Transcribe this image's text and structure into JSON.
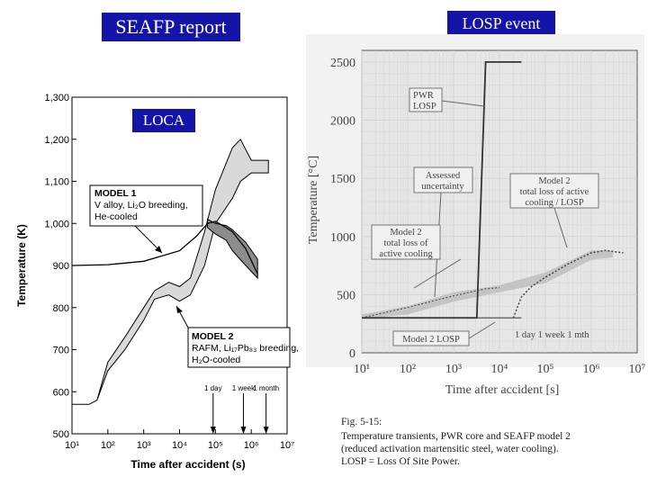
{
  "titles": {
    "left": "SEAFP report",
    "right": "LOSP event",
    "loca": "LOCA"
  },
  "chart_data": [
    {
      "type": "line",
      "title": "",
      "xlabel": "Time after accident  (s)",
      "ylabel": "Temperature  (K)",
      "xscale": "log",
      "xlim": [
        10,
        10000000
      ],
      "ylim": [
        500,
        1300
      ],
      "x_ticks": [
        {
          "v": 10,
          "label": "10¹"
        },
        {
          "v": 100,
          "label": "10²"
        },
        {
          "v": 1000,
          "label": "10³"
        },
        {
          "v": 10000,
          "label": "10⁴"
        },
        {
          "v": 100000,
          "label": "10⁵"
        },
        {
          "v": 1000000,
          "label": "10⁶"
        },
        {
          "v": 10000000,
          "label": "10⁷"
        }
      ],
      "y_ticks": [
        {
          "v": 500,
          "label": "500"
        },
        {
          "v": 600,
          "label": "600"
        },
        {
          "v": 700,
          "label": "700"
        },
        {
          "v": 800,
          "label": "800"
        },
        {
          "v": 900,
          "label": "900"
        },
        {
          "v": 1000,
          "label": "1,000"
        },
        {
          "v": 1100,
          "label": "1,100"
        },
        {
          "v": 1200,
          "label": "1,200"
        },
        {
          "v": 1300,
          "label": "1,300"
        }
      ],
      "series": [
        {
          "name": "Model 1",
          "lines": [
            "MODEL 1",
            "V alloy, Li₂O breeding,",
            "He-cooled"
          ],
          "x": [
            10,
            100,
            1000,
            10000,
            30000,
            60000,
            100000,
            200000,
            300000,
            700000,
            1500000
          ],
          "y": [
            900,
            902,
            910,
            935,
            970,
            1000,
            1005,
            990,
            980,
            940,
            880
          ],
          "band_upper": [
            null,
            null,
            null,
            null,
            null,
            1010,
            1000,
            995,
            985,
            955,
            915
          ],
          "band_lower": [
            null,
            null,
            null,
            null,
            null,
            990,
            975,
            960,
            935,
            900,
            870
          ]
        },
        {
          "name": "Model 2",
          "lines": [
            "MODEL 2",
            "RAFM, Li₁₇Pb₈₃ breeding,",
            "H₂O-cooled"
          ],
          "x": [
            10,
            30,
            50,
            100,
            300,
            1000,
            2000,
            5000,
            10000,
            20000,
            50000,
            100000,
            300000,
            500000,
            1000000,
            3000000
          ],
          "band_upper": [
            570,
            570,
            580,
            670,
            730,
            800,
            840,
            860,
            850,
            870,
            980,
            1080,
            1180,
            1200,
            1150,
            1150
          ],
          "band_lower": [
            570,
            570,
            580,
            650,
            700,
            770,
            820,
            830,
            815,
            830,
            900,
            1000,
            1060,
            1100,
            1120,
            1120
          ]
        }
      ],
      "markers": [
        {
          "x": 86400,
          "label": "1 day"
        },
        {
          "x": 604800,
          "label": "1 week"
        },
        {
          "x": 2592000,
          "label": "1 month"
        }
      ]
    },
    {
      "type": "line",
      "title": "",
      "xlabel": "Time after accident [s]",
      "ylabel": "Temperature [°C]",
      "xscale": "log",
      "xlim": [
        10,
        10000000
      ],
      "ylim": [
        0,
        2600
      ],
      "x_ticks": [
        {
          "v": 10,
          "label": "10¹"
        },
        {
          "v": 100,
          "label": "10²"
        },
        {
          "v": 1000,
          "label": "10³"
        },
        {
          "v": 10000,
          "label": "10⁴"
        },
        {
          "v": 100000,
          "label": "10⁵"
        },
        {
          "v": 1000000,
          "label": "10⁶"
        },
        {
          "v": 10000000,
          "label": "10⁷"
        }
      ],
      "y_ticks": [
        {
          "v": 0,
          "label": "0"
        },
        {
          "v": 500,
          "label": "500"
        },
        {
          "v": 1000,
          "label": "1000"
        },
        {
          "v": 1500,
          "label": "1500"
        },
        {
          "v": 2000,
          "label": "2000"
        },
        {
          "v": 2500,
          "label": "2500"
        }
      ],
      "series": [
        {
          "name": "PWR LOSP",
          "lines": [
            "PWR",
            "LOSP"
          ],
          "x": [
            10,
            100,
            1000,
            3200,
            5000,
            15000,
            30000
          ],
          "y": [
            300,
            300,
            300,
            300,
            2500,
            2500,
            2500
          ]
        },
        {
          "name": "Model 2 LOSP",
          "lines": [
            "Model 2  LOSP"
          ],
          "x": [
            10,
            1000,
            10000,
            20000,
            30000
          ],
          "y": [
            300,
            300,
            300,
            300,
            300
          ]
        },
        {
          "name": "Model 2 total loss of active cooling",
          "lines": [
            "Model 2",
            "total loss of",
            "active cooling"
          ],
          "x": [
            10,
            100,
            1000,
            5000,
            10000
          ],
          "y": [
            300,
            390,
            490,
            550,
            560
          ]
        },
        {
          "name": "Model 2 total loss of active cooling / LOSP",
          "lines": [
            "Model 2",
            "total loss of active",
            "cooling / LOSP"
          ],
          "x": [
            20000,
            30000,
            50000,
            100000,
            300000,
            1000000,
            2000000,
            5000000
          ],
          "y": [
            300,
            480,
            570,
            650,
            760,
            860,
            880,
            860
          ]
        }
      ],
      "uncertainty_band": {
        "x": [
          10,
          100,
          1000,
          10000,
          100000,
          1000000,
          3000000
        ],
        "lower": [
          290,
          330,
          440,
          520,
          600,
          800,
          820
        ],
        "upper": [
          330,
          400,
          520,
          580,
          690,
          880,
          880
        ]
      },
      "annotations": [
        "Assessed",
        "uncertainty"
      ],
      "time_labels": "1 day 1 week 1 mth",
      "caption": [
        "Fig. 5-15:",
        "Temperature transients, PWR core and SEAFP model 2",
        "(reduced activation martensitic steel, water cooling).",
        "LOSP = Loss Of Site Power."
      ]
    }
  ]
}
